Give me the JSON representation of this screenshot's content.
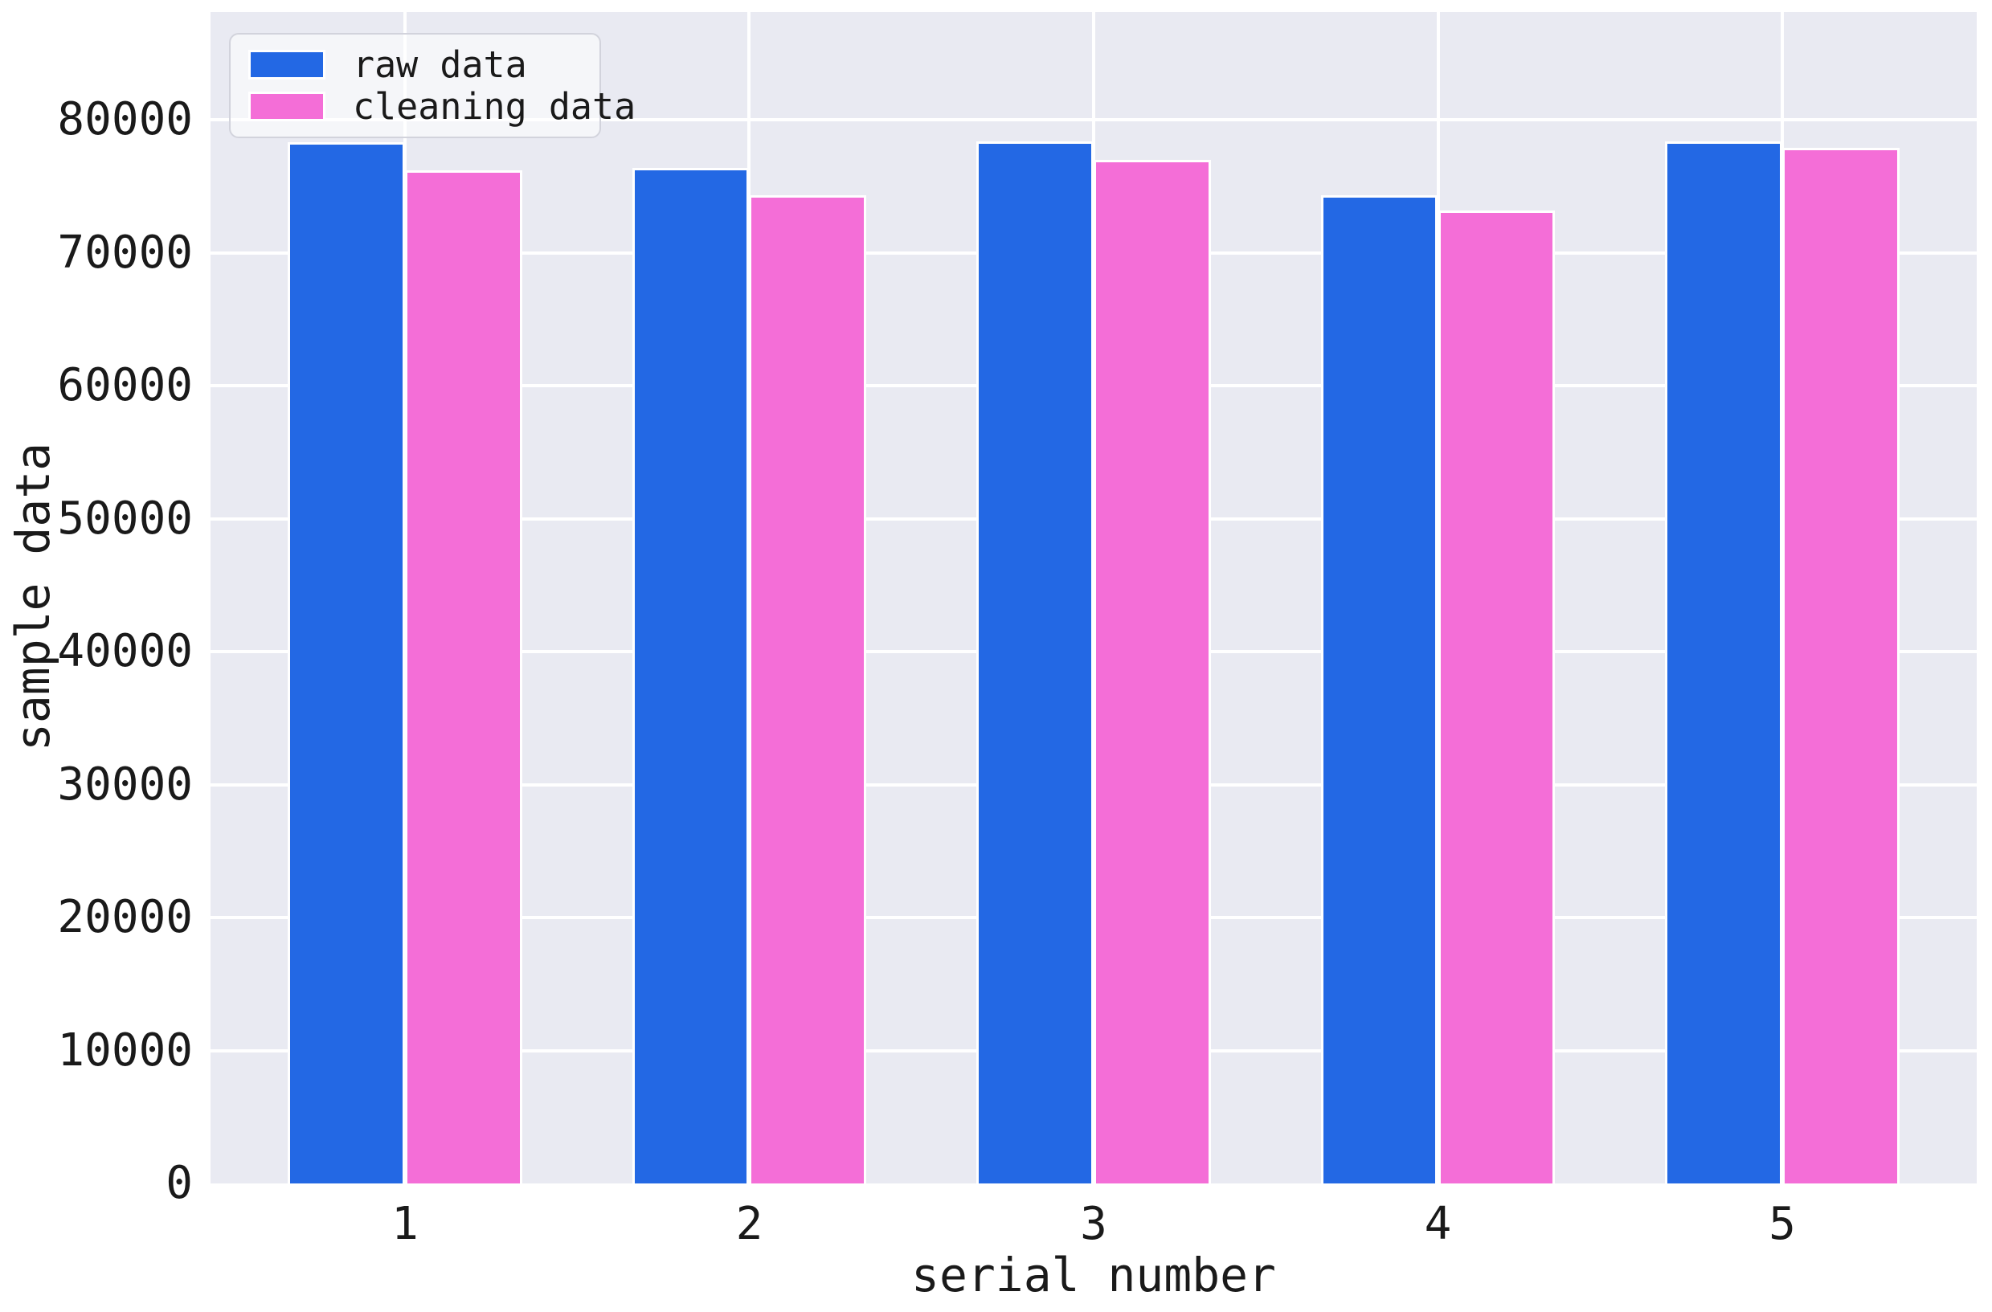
{
  "chart_data": {
    "type": "bar",
    "xlabel": "serial number",
    "ylabel": "sample data",
    "categories": [
      "1",
      "2",
      "3",
      "4",
      "5"
    ],
    "series": [
      {
        "name": "raw data",
        "color": "#2368e4",
        "values": [
          78300,
          76400,
          78400,
          74300,
          78400
        ]
      },
      {
        "name": "cleaning data",
        "color": "#f46ed7",
        "values": [
          76200,
          74300,
          77000,
          73200,
          77900
        ]
      }
    ],
    "yticks": [
      0,
      10000,
      20000,
      30000,
      40000,
      50000,
      60000,
      70000,
      80000
    ],
    "ylim": [
      0,
      88100
    ],
    "grid": "on",
    "legend_position": "upper left",
    "plot_bg": "#e9eaf2",
    "grid_color": "#ffffff",
    "text_color": "#1a1a1a"
  }
}
